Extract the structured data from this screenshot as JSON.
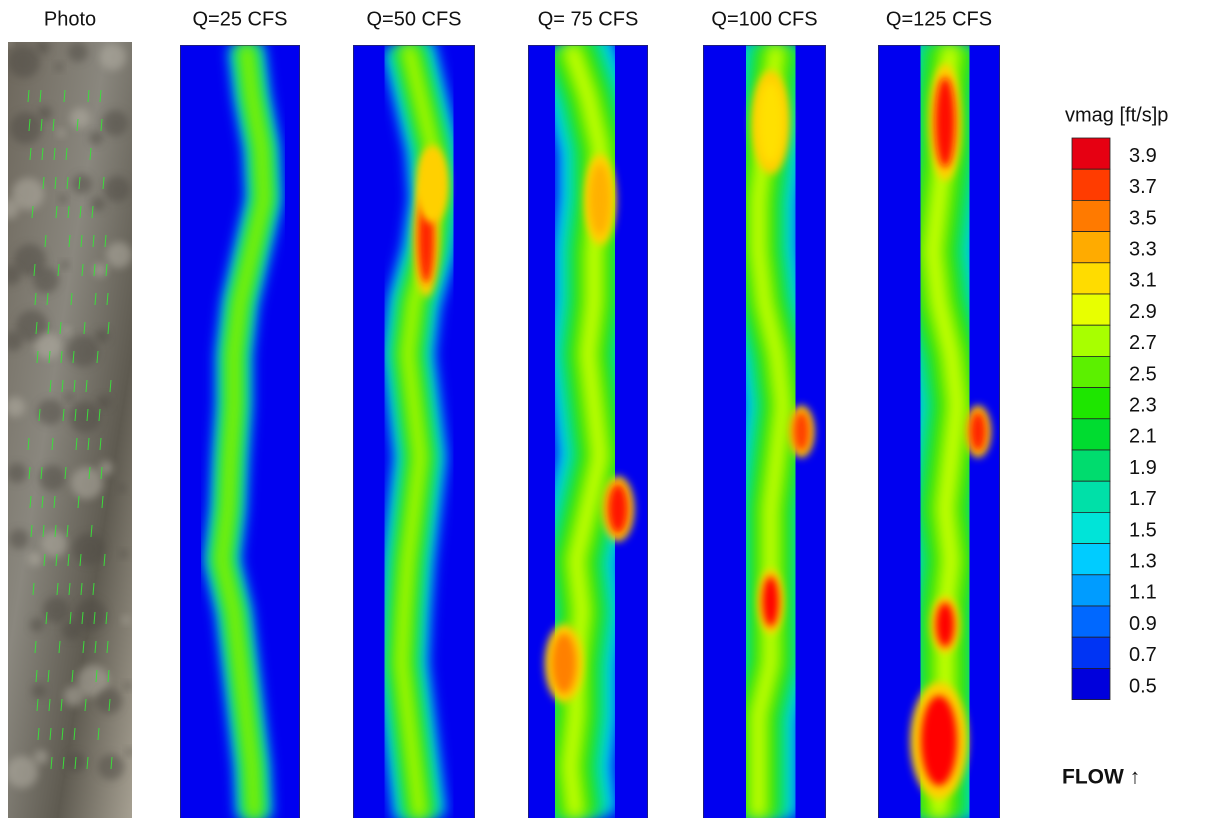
{
  "panels": [
    {
      "title": "Photo"
    },
    {
      "title": "Q=25 CFS"
    },
    {
      "title": "Q=50 CFS"
    },
    {
      "title": "Q= 75 CFS"
    },
    {
      "title": "Q=100 CFS"
    },
    {
      "title": "Q=125 CFS"
    }
  ],
  "legend": {
    "title": "vmag [ft/s]p",
    "levels": [
      {
        "value": 3.9,
        "color": "#e60012"
      },
      {
        "value": 3.7,
        "color": "#ff3c00"
      },
      {
        "value": 3.5,
        "color": "#ff7a00"
      },
      {
        "value": 3.3,
        "color": "#ffab00"
      },
      {
        "value": 3.1,
        "color": "#ffdc00"
      },
      {
        "value": 2.9,
        "color": "#e8ff00"
      },
      {
        "value": 2.7,
        "color": "#a8ff00"
      },
      {
        "value": 2.5,
        "color": "#5cf000"
      },
      {
        "value": 2.3,
        "color": "#1ee600"
      },
      {
        "value": 2.1,
        "color": "#00dc30"
      },
      {
        "value": 1.9,
        "color": "#00dc6e"
      },
      {
        "value": 1.7,
        "color": "#00e0a8"
      },
      {
        "value": 1.5,
        "color": "#00e4d8"
      },
      {
        "value": 1.3,
        "color": "#00ccff"
      },
      {
        "value": 1.1,
        "color": "#009cff"
      },
      {
        "value": 0.9,
        "color": "#0068ff"
      },
      {
        "value": 0.7,
        "color": "#0034f4"
      },
      {
        "value": 0.5,
        "color": "#0000dc"
      }
    ]
  },
  "flow_label": "FLOW ↑"
}
